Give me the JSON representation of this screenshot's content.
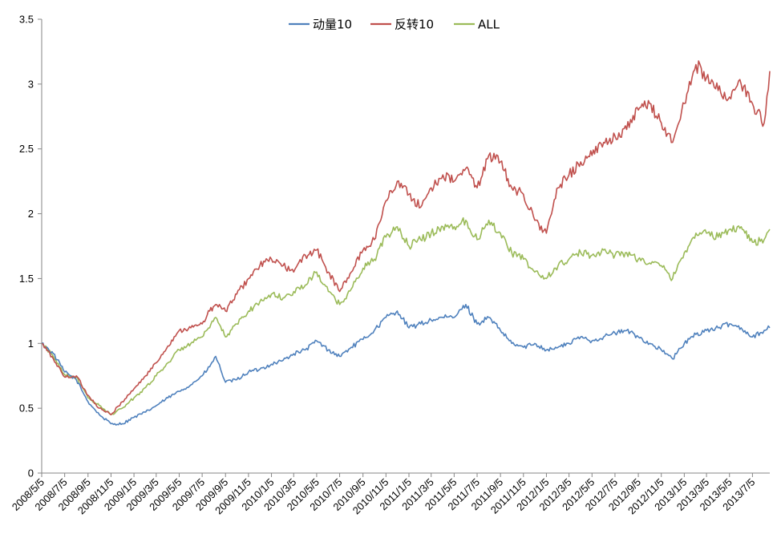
{
  "chart_data": {
    "type": "line",
    "title": "",
    "xlabel": "",
    "ylabel": "",
    "ylim": [
      0,
      3.5
    ],
    "yticks": [
      "0",
      "0.5",
      "1",
      "1.5",
      "2",
      "2.5",
      "3",
      "3.5"
    ],
    "x_tick_labels": [
      "2008/5/5",
      "2008/7/5",
      "2008/9/5",
      "2008/11/5",
      "2009/1/5",
      "2009/3/5",
      "2009/5/5",
      "2009/7/5",
      "2009/9/5",
      "2009/11/5",
      "2010/1/5",
      "2010/3/5",
      "2010/5/5",
      "2010/7/5",
      "2010/9/5",
      "2010/11/5",
      "2011/1/5",
      "2011/3/5",
      "2011/5/5",
      "2011/7/5",
      "2011/9/5",
      "2011/11/5",
      "2012/1/5",
      "2012/3/5",
      "2012/5/5",
      "2012/7/5",
      "2012/9/5",
      "2012/11/5",
      "2013/1/5",
      "2013/3/5",
      "2013/5/5",
      "2013/7/5"
    ],
    "x_range": [
      "2008/5/5",
      "2013/8/20"
    ],
    "grid": false,
    "legend_position": "top-center",
    "series": [
      {
        "name": "动量10",
        "color": "#4f81bd",
        "dates": [
          "2008/5/5",
          "2008/6/5",
          "2008/7/5",
          "2008/8/5",
          "2008/9/5",
          "2008/10/5",
          "2008/11/5",
          "2008/12/5",
          "2009/1/5",
          "2009/2/5",
          "2009/3/5",
          "2009/4/5",
          "2009/5/5",
          "2009/6/5",
          "2009/7/5",
          "2009/7/25",
          "2009/8/10",
          "2009/9/5",
          "2009/10/5",
          "2009/11/5",
          "2009/12/5",
          "2010/1/5",
          "2010/2/5",
          "2010/3/5",
          "2010/4/5",
          "2010/5/5",
          "2010/6/5",
          "2010/7/5",
          "2010/8/5",
          "2010/9/5",
          "2010/10/5",
          "2010/11/5",
          "2010/12/5",
          "2011/1/5",
          "2011/2/5",
          "2011/3/5",
          "2011/4/5",
          "2011/5/5",
          "2011/6/5",
          "2011/7/5",
          "2011/8/5",
          "2011/9/5",
          "2011/10/5",
          "2011/11/5",
          "2011/12/5",
          "2012/1/5",
          "2012/2/5",
          "2012/3/5",
          "2012/4/5",
          "2012/5/5",
          "2012/6/5",
          "2012/7/5",
          "2012/8/5",
          "2012/9/5",
          "2012/10/5",
          "2012/11/5",
          "2012/12/5",
          "2013/1/5",
          "2013/2/5",
          "2013/3/5",
          "2013/4/5",
          "2013/5/5",
          "2013/6/5",
          "2013/7/5",
          "2013/8/5",
          "2013/8/20"
        ],
        "values": [
          1.0,
          0.92,
          0.78,
          0.72,
          0.55,
          0.45,
          0.38,
          0.38,
          0.43,
          0.47,
          0.52,
          0.58,
          0.63,
          0.68,
          0.75,
          0.82,
          0.9,
          0.7,
          0.72,
          0.78,
          0.8,
          0.84,
          0.87,
          0.92,
          0.95,
          1.02,
          0.95,
          0.9,
          0.97,
          1.03,
          1.1,
          1.2,
          1.25,
          1.12,
          1.15,
          1.18,
          1.2,
          1.2,
          1.3,
          1.15,
          1.2,
          1.1,
          1.0,
          0.97,
          1.0,
          0.95,
          0.97,
          1.0,
          1.05,
          1.02,
          1.05,
          1.08,
          1.1,
          1.05,
          1.0,
          0.95,
          0.88,
          1.0,
          1.07,
          1.1,
          1.12,
          1.15,
          1.12,
          1.05,
          1.1,
          1.12
        ]
      },
      {
        "name": "反转10",
        "color": "#c0504d",
        "dates": [
          "2008/5/5",
          "2008/6/5",
          "2008/7/5",
          "2008/8/5",
          "2008/9/5",
          "2008/10/5",
          "2008/11/5",
          "2008/12/5",
          "2009/1/5",
          "2009/2/5",
          "2009/3/5",
          "2009/4/5",
          "2009/5/5",
          "2009/6/5",
          "2009/7/5",
          "2009/7/25",
          "2009/8/10",
          "2009/9/5",
          "2009/10/5",
          "2009/11/5",
          "2009/12/5",
          "2010/1/5",
          "2010/2/5",
          "2010/3/5",
          "2010/4/5",
          "2010/5/5",
          "2010/6/5",
          "2010/7/5",
          "2010/8/5",
          "2010/9/5",
          "2010/10/5",
          "2010/11/5",
          "2010/12/5",
          "2011/1/5",
          "2011/2/5",
          "2011/3/5",
          "2011/4/5",
          "2011/5/5",
          "2011/6/5",
          "2011/7/5",
          "2011/8/5",
          "2011/9/5",
          "2011/10/5",
          "2011/11/5",
          "2011/12/5",
          "2012/1/5",
          "2012/2/5",
          "2012/3/5",
          "2012/4/5",
          "2012/5/5",
          "2012/6/5",
          "2012/7/5",
          "2012/8/5",
          "2012/9/5",
          "2012/10/5",
          "2012/11/5",
          "2012/12/5",
          "2013/1/5",
          "2013/2/5",
          "2013/3/5",
          "2013/4/5",
          "2013/5/5",
          "2013/6/5",
          "2013/7/5",
          "2013/8/5",
          "2013/8/20"
        ],
        "values": [
          1.0,
          0.88,
          0.74,
          0.75,
          0.6,
          0.5,
          0.45,
          0.55,
          0.65,
          0.75,
          0.85,
          0.98,
          1.1,
          1.12,
          1.15,
          1.25,
          1.3,
          1.25,
          1.38,
          1.5,
          1.6,
          1.65,
          1.6,
          1.55,
          1.68,
          1.72,
          1.55,
          1.4,
          1.55,
          1.72,
          1.8,
          2.1,
          2.25,
          2.15,
          2.05,
          2.2,
          2.3,
          2.25,
          2.35,
          2.2,
          2.45,
          2.4,
          2.2,
          2.15,
          1.95,
          1.85,
          2.2,
          2.3,
          2.4,
          2.45,
          2.55,
          2.6,
          2.65,
          2.8,
          2.85,
          2.7,
          2.55,
          2.85,
          3.15,
          3.05,
          2.95,
          2.9,
          3.0,
          2.85,
          2.7,
          3.1
        ]
      },
      {
        "name": "ALL",
        "color": "#9bbb59",
        "dates": [
          "2008/5/5",
          "2008/6/5",
          "2008/7/5",
          "2008/8/5",
          "2008/9/5",
          "2008/10/5",
          "2008/11/5",
          "2008/12/5",
          "2009/1/5",
          "2009/2/5",
          "2009/3/5",
          "2009/4/5",
          "2009/5/5",
          "2009/6/5",
          "2009/7/5",
          "2009/7/25",
          "2009/8/10",
          "2009/9/5",
          "2009/10/5",
          "2009/11/5",
          "2009/12/5",
          "2010/1/5",
          "2010/2/5",
          "2010/3/5",
          "2010/4/5",
          "2010/5/5",
          "2010/6/5",
          "2010/7/5",
          "2010/8/5",
          "2010/9/5",
          "2010/10/5",
          "2010/11/5",
          "2010/12/5",
          "2011/1/5",
          "2011/2/5",
          "2011/3/5",
          "2011/4/5",
          "2011/5/5",
          "2011/6/5",
          "2011/7/5",
          "2011/8/5",
          "2011/9/5",
          "2011/10/5",
          "2011/11/5",
          "2011/12/5",
          "2012/1/5",
          "2012/2/5",
          "2012/3/5",
          "2012/4/5",
          "2012/5/5",
          "2012/6/5",
          "2012/7/5",
          "2012/8/5",
          "2012/9/5",
          "2012/10/5",
          "2012/11/5",
          "2012/12/5",
          "2013/1/5",
          "2013/2/5",
          "2013/3/5",
          "2013/4/5",
          "2013/5/5",
          "2013/6/5",
          "2013/7/5",
          "2013/8/5",
          "2013/8/20"
        ],
        "values": [
          1.0,
          0.9,
          0.76,
          0.74,
          0.58,
          0.52,
          0.45,
          0.5,
          0.58,
          0.66,
          0.75,
          0.85,
          0.95,
          1.0,
          1.05,
          1.12,
          1.2,
          1.05,
          1.15,
          1.25,
          1.32,
          1.38,
          1.35,
          1.4,
          1.45,
          1.55,
          1.4,
          1.3,
          1.42,
          1.58,
          1.65,
          1.82,
          1.9,
          1.75,
          1.8,
          1.85,
          1.9,
          1.9,
          1.95,
          1.8,
          1.95,
          1.85,
          1.7,
          1.65,
          1.55,
          1.5,
          1.6,
          1.65,
          1.7,
          1.68,
          1.72,
          1.68,
          1.7,
          1.65,
          1.62,
          1.6,
          1.5,
          1.7,
          1.85,
          1.85,
          1.82,
          1.88,
          1.9,
          1.78,
          1.8,
          1.88
        ]
      }
    ]
  }
}
